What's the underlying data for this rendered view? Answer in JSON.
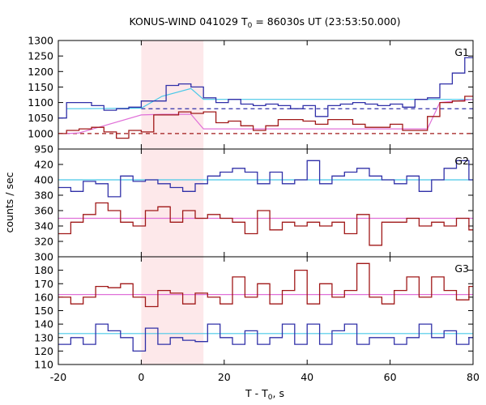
{
  "title_prefix": "KONUS-WIND 041029 T",
  "title_sub": "0",
  "title_suffix": " = 86030s UT (23:53:50.000)",
  "ylabel": "counts / sec",
  "xlabel_prefix": "T - T",
  "xlabel_sub": "0",
  "xlabel_suffix": ", s",
  "colors": {
    "blue": "#3030a8",
    "red": "#a01818",
    "cyan": "#48c8e8",
    "pink": "#e070d8",
    "shade": "#fde8ea"
  },
  "chart_data": {
    "type": "line",
    "step": true,
    "xlim": [
      -20,
      80
    ],
    "xticks": [
      -20,
      0,
      20,
      40,
      60,
      80
    ],
    "highlight": [
      0,
      15
    ],
    "panels": [
      {
        "label": "G1",
        "ylim": [
          950,
          1300
        ],
        "yticks": [
          950,
          1000,
          1050,
          1100,
          1150,
          1200,
          1250,
          1300
        ],
        "series": [
          {
            "color": "blue",
            "x": [
              -20,
              -18,
              -15,
              -12,
              -9,
              -6,
              -3,
              0,
              3,
              6,
              9,
              12,
              15,
              18,
              21,
              24,
              27,
              30,
              33,
              36,
              39,
              42,
              45,
              48,
              51,
              54,
              57,
              60,
              63,
              66,
              69,
              72,
              75,
              78
            ],
            "values": [
              1050,
              1100,
              1100,
              1090,
              1075,
              1080,
              1085,
              1105,
              1105,
              1155,
              1160,
              1150,
              1115,
              1100,
              1110,
              1095,
              1090,
              1095,
              1090,
              1080,
              1090,
              1055,
              1090,
              1095,
              1100,
              1095,
              1090,
              1095,
              1085,
              1110,
              1115,
              1160,
              1195,
              1245
            ]
          },
          {
            "color": "red",
            "x": [
              -20,
              -18,
              -15,
              -12,
              -9,
              -6,
              -3,
              0,
              3,
              6,
              9,
              12,
              15,
              18,
              21,
              24,
              27,
              30,
              33,
              36,
              39,
              42,
              45,
              48,
              51,
              54,
              57,
              60,
              63,
              66,
              69,
              72,
              75,
              78
            ],
            "values": [
              1000,
              1010,
              1015,
              1020,
              1005,
              985,
              1010,
              1005,
              1060,
              1060,
              1070,
              1065,
              1070,
              1035,
              1040,
              1025,
              1010,
              1025,
              1045,
              1045,
              1040,
              1030,
              1045,
              1045,
              1030,
              1020,
              1020,
              1030,
              1010,
              1010,
              1055,
              1100,
              1105,
              1120
            ]
          }
        ],
        "fits": [
          {
            "color": "cyan",
            "x": [
              -18,
              -15,
              0,
              5,
              12,
              15,
              80
            ],
            "values": [
              1080,
              1080,
              1082,
              1120,
              1145,
              1110,
              1110
            ]
          },
          {
            "color": "pink",
            "x": [
              -18,
              -15,
              0,
              5,
              12,
              15,
              69,
              72,
              80
            ],
            "values": [
              1000,
              1002,
              1060,
              1062,
              1062,
              1015,
              1015,
              1100,
              1110
            ]
          }
        ],
        "levels": [
          {
            "color": "blue",
            "value": 1080,
            "from": 0
          },
          {
            "color": "red",
            "value": 1000,
            "from": -20
          }
        ]
      },
      {
        "label": "G2",
        "ylim": [
          300,
          440
        ],
        "yticks": [
          300,
          320,
          340,
          360,
          380,
          400,
          420
        ],
        "series": [
          {
            "color": "blue",
            "x": [
              -20,
              -17,
              -14,
              -11,
              -8,
              -5,
              -2,
              1,
              4,
              7,
              10,
              13,
              16,
              19,
              22,
              25,
              28,
              31,
              34,
              37,
              40,
              43,
              46,
              49,
              52,
              55,
              58,
              61,
              64,
              67,
              70,
              73,
              76,
              79
            ],
            "values": [
              390,
              385,
              398,
              395,
              378,
              405,
              398,
              400,
              395,
              390,
              385,
              395,
              405,
              410,
              415,
              410,
              395,
              410,
              395,
              400,
              425,
              395,
              405,
              410,
              415,
              405,
              400,
              395,
              405,
              385,
              400,
              415,
              425,
              400
            ]
          },
          {
            "color": "red",
            "x": [
              -20,
              -17,
              -14,
              -11,
              -8,
              -5,
              -2,
              1,
              4,
              7,
              10,
              13,
              16,
              19,
              22,
              25,
              28,
              31,
              34,
              37,
              40,
              43,
              46,
              49,
              52,
              55,
              58,
              61,
              64,
              67,
              70,
              73,
              76,
              79
            ],
            "values": [
              330,
              345,
              355,
              370,
              360,
              345,
              340,
              360,
              365,
              345,
              360,
              350,
              355,
              350,
              345,
              330,
              360,
              335,
              345,
              340,
              345,
              340,
              345,
              330,
              355,
              315,
              345,
              345,
              350,
              340,
              345,
              340,
              350,
              335
            ]
          }
        ],
        "fits": [
          {
            "color": "cyan",
            "x": [
              -20,
              80
            ],
            "values": [
              400,
              400
            ]
          },
          {
            "color": "pink",
            "x": [
              -20,
              80
            ],
            "values": [
              350,
              350
            ]
          }
        ]
      },
      {
        "label": "G3",
        "ylim": [
          110,
          190
        ],
        "yticks": [
          110,
          120,
          130,
          140,
          150,
          160,
          170,
          180
        ],
        "series": [
          {
            "color": "blue",
            "x": [
              -20,
              -17,
              -14,
              -11,
              -8,
              -5,
              -2,
              1,
              4,
              7,
              10,
              13,
              16,
              19,
              22,
              25,
              28,
              31,
              34,
              37,
              40,
              43,
              46,
              49,
              52,
              55,
              58,
              61,
              64,
              67,
              70,
              73,
              76,
              79
            ],
            "values": [
              125,
              130,
              125,
              140,
              135,
              130,
              120,
              137,
              125,
              130,
              128,
              127,
              140,
              130,
              125,
              135,
              125,
              130,
              140,
              125,
              140,
              125,
              135,
              140,
              125,
              130,
              130,
              125,
              130,
              140,
              130,
              135,
              125,
              130
            ]
          },
          {
            "color": "red",
            "x": [
              -20,
              -17,
              -14,
              -11,
              -8,
              -5,
              -2,
              1,
              4,
              7,
              10,
              13,
              16,
              19,
              22,
              25,
              28,
              31,
              34,
              37,
              40,
              43,
              46,
              49,
              52,
              55,
              58,
              61,
              64,
              67,
              70,
              73,
              76,
              79
            ],
            "values": [
              160,
              155,
              160,
              168,
              167,
              170,
              160,
              153,
              165,
              163,
              155,
              163,
              160,
              155,
              175,
              160,
              170,
              155,
              165,
              180,
              155,
              170,
              160,
              165,
              185,
              160,
              155,
              165,
              175,
              160,
              175,
              165,
              158,
              168
            ]
          }
        ],
        "fits": [
          {
            "color": "cyan",
            "x": [
              -20,
              80
            ],
            "values": [
              133,
              133
            ]
          },
          {
            "color": "pink",
            "x": [
              -20,
              80
            ],
            "values": [
              162,
              162
            ]
          }
        ]
      }
    ]
  }
}
